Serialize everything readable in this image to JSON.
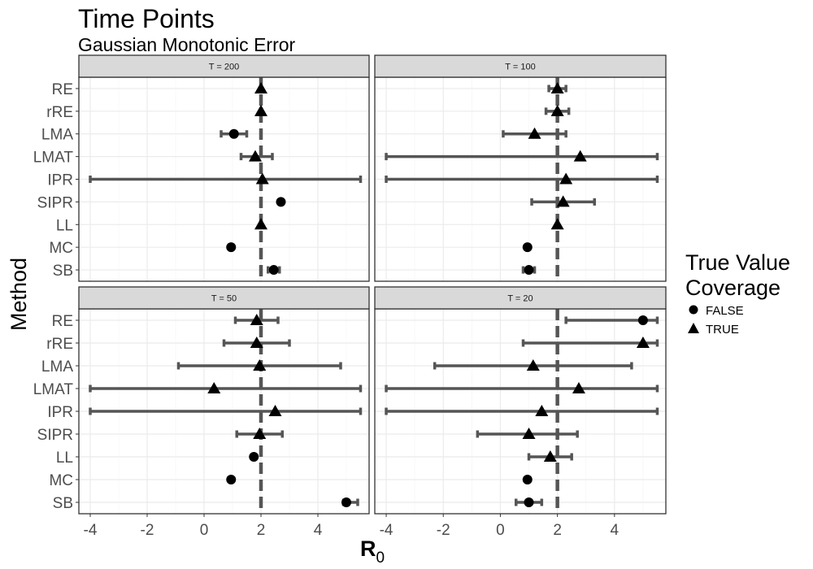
{
  "chart_data": {
    "type": "errorbar-dotplot",
    "title": "Time Points",
    "subtitle": "Gaussian Monotonic Error",
    "xlabel_main": "R",
    "xlabel_sub": "0",
    "ylabel": "Method",
    "xlim": [
      -4.4,
      5.8
    ],
    "xticks": [
      -4,
      -2,
      0,
      2,
      4
    ],
    "reference_line": 2,
    "methods": [
      "RE",
      "rRE",
      "LMA",
      "LMAT",
      "IPR",
      "SIPR",
      "LL",
      "MC",
      "SB"
    ],
    "legend": {
      "title_line1": "True Value",
      "title_line2": "Coverage",
      "false_label": "FALSE",
      "true_label": "TRUE"
    },
    "panels": [
      {
        "label": "T = 200",
        "points": [
          {
            "method": "RE",
            "estimate": 2.0,
            "lower": null,
            "upper": null,
            "coverage": true
          },
          {
            "method": "rRE",
            "estimate": 2.0,
            "lower": null,
            "upper": null,
            "coverage": true
          },
          {
            "method": "LMA",
            "estimate": 1.05,
            "lower": 0.6,
            "upper": 1.5,
            "coverage": false
          },
          {
            "method": "LMAT",
            "estimate": 1.8,
            "lower": 1.3,
            "upper": 2.4,
            "coverage": true
          },
          {
            "method": "IPR",
            "estimate": 2.05,
            "lower": -4.0,
            "upper": 5.5,
            "coverage": true
          },
          {
            "method": "SIPR",
            "estimate": 2.7,
            "lower": null,
            "upper": null,
            "coverage": false
          },
          {
            "method": "LL",
            "estimate": 2.0,
            "lower": null,
            "upper": null,
            "coverage": true
          },
          {
            "method": "MC",
            "estimate": 0.95,
            "lower": null,
            "upper": null,
            "coverage": false
          },
          {
            "method": "SB",
            "estimate": 2.45,
            "lower": 2.25,
            "upper": 2.65,
            "coverage": false
          }
        ]
      },
      {
        "label": "T = 100",
        "points": [
          {
            "method": "RE",
            "estimate": 2.0,
            "lower": 1.7,
            "upper": 2.3,
            "coverage": true
          },
          {
            "method": "rRE",
            "estimate": 2.0,
            "lower": 1.6,
            "upper": 2.4,
            "coverage": true
          },
          {
            "method": "LMA",
            "estimate": 1.2,
            "lower": 0.1,
            "upper": 2.3,
            "coverage": true
          },
          {
            "method": "LMAT",
            "estimate": 2.8,
            "lower": -4.0,
            "upper": 5.5,
            "coverage": true
          },
          {
            "method": "IPR",
            "estimate": 2.3,
            "lower": -4.0,
            "upper": 5.5,
            "coverage": true
          },
          {
            "method": "SIPR",
            "estimate": 2.2,
            "lower": 1.1,
            "upper": 3.3,
            "coverage": true
          },
          {
            "method": "LL",
            "estimate": 2.0,
            "lower": null,
            "upper": null,
            "coverage": true
          },
          {
            "method": "MC",
            "estimate": 0.95,
            "lower": null,
            "upper": null,
            "coverage": false
          },
          {
            "method": "SB",
            "estimate": 1.0,
            "lower": 0.8,
            "upper": 1.2,
            "coverage": false
          }
        ]
      },
      {
        "label": "T = 50",
        "points": [
          {
            "method": "RE",
            "estimate": 1.85,
            "lower": 1.1,
            "upper": 2.6,
            "coverage": true
          },
          {
            "method": "rRE",
            "estimate": 1.85,
            "lower": 0.7,
            "upper": 3.0,
            "coverage": true
          },
          {
            "method": "LMA",
            "estimate": 1.95,
            "lower": -0.9,
            "upper": 4.8,
            "coverage": true
          },
          {
            "method": "LMAT",
            "estimate": 0.35,
            "lower": -4.0,
            "upper": 5.5,
            "coverage": true
          },
          {
            "method": "IPR",
            "estimate": 2.5,
            "lower": -4.0,
            "upper": 5.5,
            "coverage": true
          },
          {
            "method": "SIPR",
            "estimate": 1.95,
            "lower": 1.15,
            "upper": 2.75,
            "coverage": true
          },
          {
            "method": "LL",
            "estimate": 1.75,
            "lower": null,
            "upper": null,
            "coverage": false
          },
          {
            "method": "MC",
            "estimate": 0.95,
            "lower": null,
            "upper": null,
            "coverage": false
          },
          {
            "method": "SB",
            "estimate": 5.0,
            "lower": 4.9,
            "upper": 5.4,
            "coverage": false
          }
        ]
      },
      {
        "label": "T = 20",
        "points": [
          {
            "method": "RE",
            "estimate": 5.0,
            "lower": 2.3,
            "upper": 5.5,
            "coverage": false
          },
          {
            "method": "rRE",
            "estimate": 5.0,
            "lower": 0.8,
            "upper": 5.5,
            "coverage": true
          },
          {
            "method": "LMA",
            "estimate": 1.15,
            "lower": -2.3,
            "upper": 4.6,
            "coverage": true
          },
          {
            "method": "LMAT",
            "estimate": 2.75,
            "lower": -4.0,
            "upper": 5.5,
            "coverage": true
          },
          {
            "method": "IPR",
            "estimate": 1.45,
            "lower": -4.0,
            "upper": 5.5,
            "coverage": true
          },
          {
            "method": "SIPR",
            "estimate": 1.0,
            "lower": -0.8,
            "upper": 2.7,
            "coverage": true
          },
          {
            "method": "LL",
            "estimate": 1.75,
            "lower": 1.0,
            "upper": 2.5,
            "coverage": true
          },
          {
            "method": "MC",
            "estimate": 0.95,
            "lower": null,
            "upper": null,
            "coverage": false
          },
          {
            "method": "SB",
            "estimate": 1.0,
            "lower": 0.55,
            "upper": 1.45,
            "coverage": false
          }
        ]
      }
    ],
    "colors": {
      "background": "#ffffff",
      "strip_fill": "#d9d9d9",
      "border": "#333333",
      "grid_major": "#ebebeb",
      "grid_minor": "#f5f5f5",
      "errorbar": "#555555",
      "reference_line": "#555555",
      "point": "#000000"
    }
  }
}
